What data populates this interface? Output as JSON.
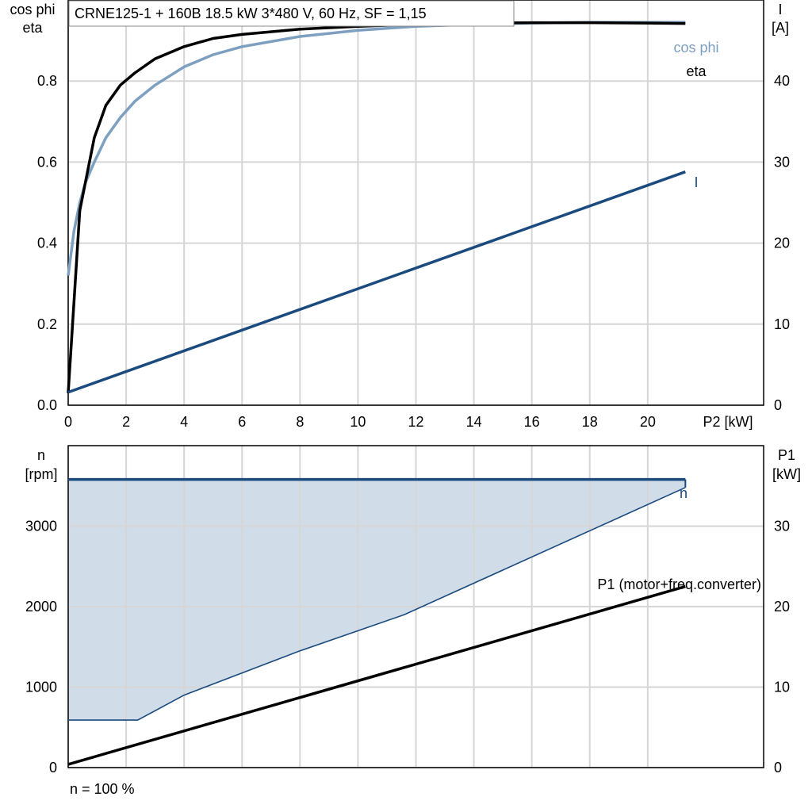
{
  "title": "CRNE125-1 + 160B   18.5 kW   3*480 V, 60 Hz, SF = 1,15",
  "footer_note": "n = 100 %",
  "colors": {
    "cosphi": "#7d9fc0",
    "eta": "#000000",
    "current": "#1a4a7e",
    "speed": "#1a4a7e",
    "p1": "#000000",
    "fill": "#d0dce7"
  },
  "chart_data": [
    {
      "type": "line",
      "xlabel": "P2 [kW]",
      "ylabel_left": [
        "cos phi",
        "eta"
      ],
      "ylabel_right": [
        "I",
        "[A]"
      ],
      "xlim": [
        0,
        24
      ],
      "xticks": [
        0,
        2,
        4,
        6,
        8,
        10,
        12,
        14,
        16,
        18,
        20
      ],
      "ylim_left": [
        0,
        1.0
      ],
      "yticks_left": [
        "0.0",
        "0.2",
        "0.4",
        "0.6",
        "0.8"
      ],
      "ylim_right": [
        0,
        50
      ],
      "yticks_right": [
        0,
        10,
        20,
        30,
        40
      ],
      "grid": true,
      "series": [
        {
          "name": "eta",
          "axis": "left",
          "x": [
            0,
            0.4,
            0.9,
            1.3,
            1.8,
            2.3,
            3,
            4,
            5,
            6,
            8,
            10,
            12,
            14,
            16,
            18,
            20,
            21.3
          ],
          "y": [
            0.03,
            0.48,
            0.66,
            0.74,
            0.79,
            0.82,
            0.855,
            0.885,
            0.905,
            0.915,
            0.928,
            0.935,
            0.94,
            0.943,
            0.944,
            0.944,
            0.943,
            0.942
          ]
        },
        {
          "name": "cos phi",
          "axis": "left",
          "x": [
            0,
            0.2,
            0.4,
            0.6,
            0.9,
            1.3,
            1.8,
            2.3,
            3,
            4,
            5,
            6,
            8,
            10,
            12,
            14,
            16,
            18,
            20,
            21.3
          ],
          "y": [
            0.32,
            0.43,
            0.5,
            0.55,
            0.6,
            0.66,
            0.71,
            0.75,
            0.79,
            0.835,
            0.865,
            0.885,
            0.91,
            0.925,
            0.935,
            0.94,
            0.943,
            0.945,
            0.945,
            0.945
          ]
        },
        {
          "name": "I",
          "axis": "right",
          "x": [
            0,
            21.3
          ],
          "y": [
            1.6,
            28.8
          ]
        }
      ]
    },
    {
      "type": "line",
      "xlabel": "",
      "ylabel_left": [
        "n",
        "[rpm]"
      ],
      "ylabel_right": [
        "P1",
        "[kW]"
      ],
      "xlim": [
        0,
        24
      ],
      "ylim_left": [
        0,
        4000
      ],
      "yticks_left": [
        0,
        1000,
        2000,
        3000
      ],
      "ylim_right": [
        0,
        40
      ],
      "yticks_right": [
        0,
        10,
        20,
        30
      ],
      "grid": true,
      "series": [
        {
          "name": "n",
          "axis": "left",
          "x": [
            0,
            21.3
          ],
          "y": [
            3580,
            3580
          ]
        },
        {
          "name": "P1 (motor+freq.converter)",
          "axis": "right",
          "x": [
            0,
            21.3
          ],
          "y": [
            0.4,
            22.5
          ]
        }
      ],
      "operating_range": {
        "upper": {
          "x": [
            0,
            21.3
          ],
          "y": [
            3580,
            3580
          ]
        },
        "lower": {
          "x": [
            0,
            2.4,
            4,
            8,
            11.6,
            21.3
          ],
          "y": [
            590,
            590,
            900,
            1450,
            1900,
            3480
          ]
        }
      }
    }
  ]
}
